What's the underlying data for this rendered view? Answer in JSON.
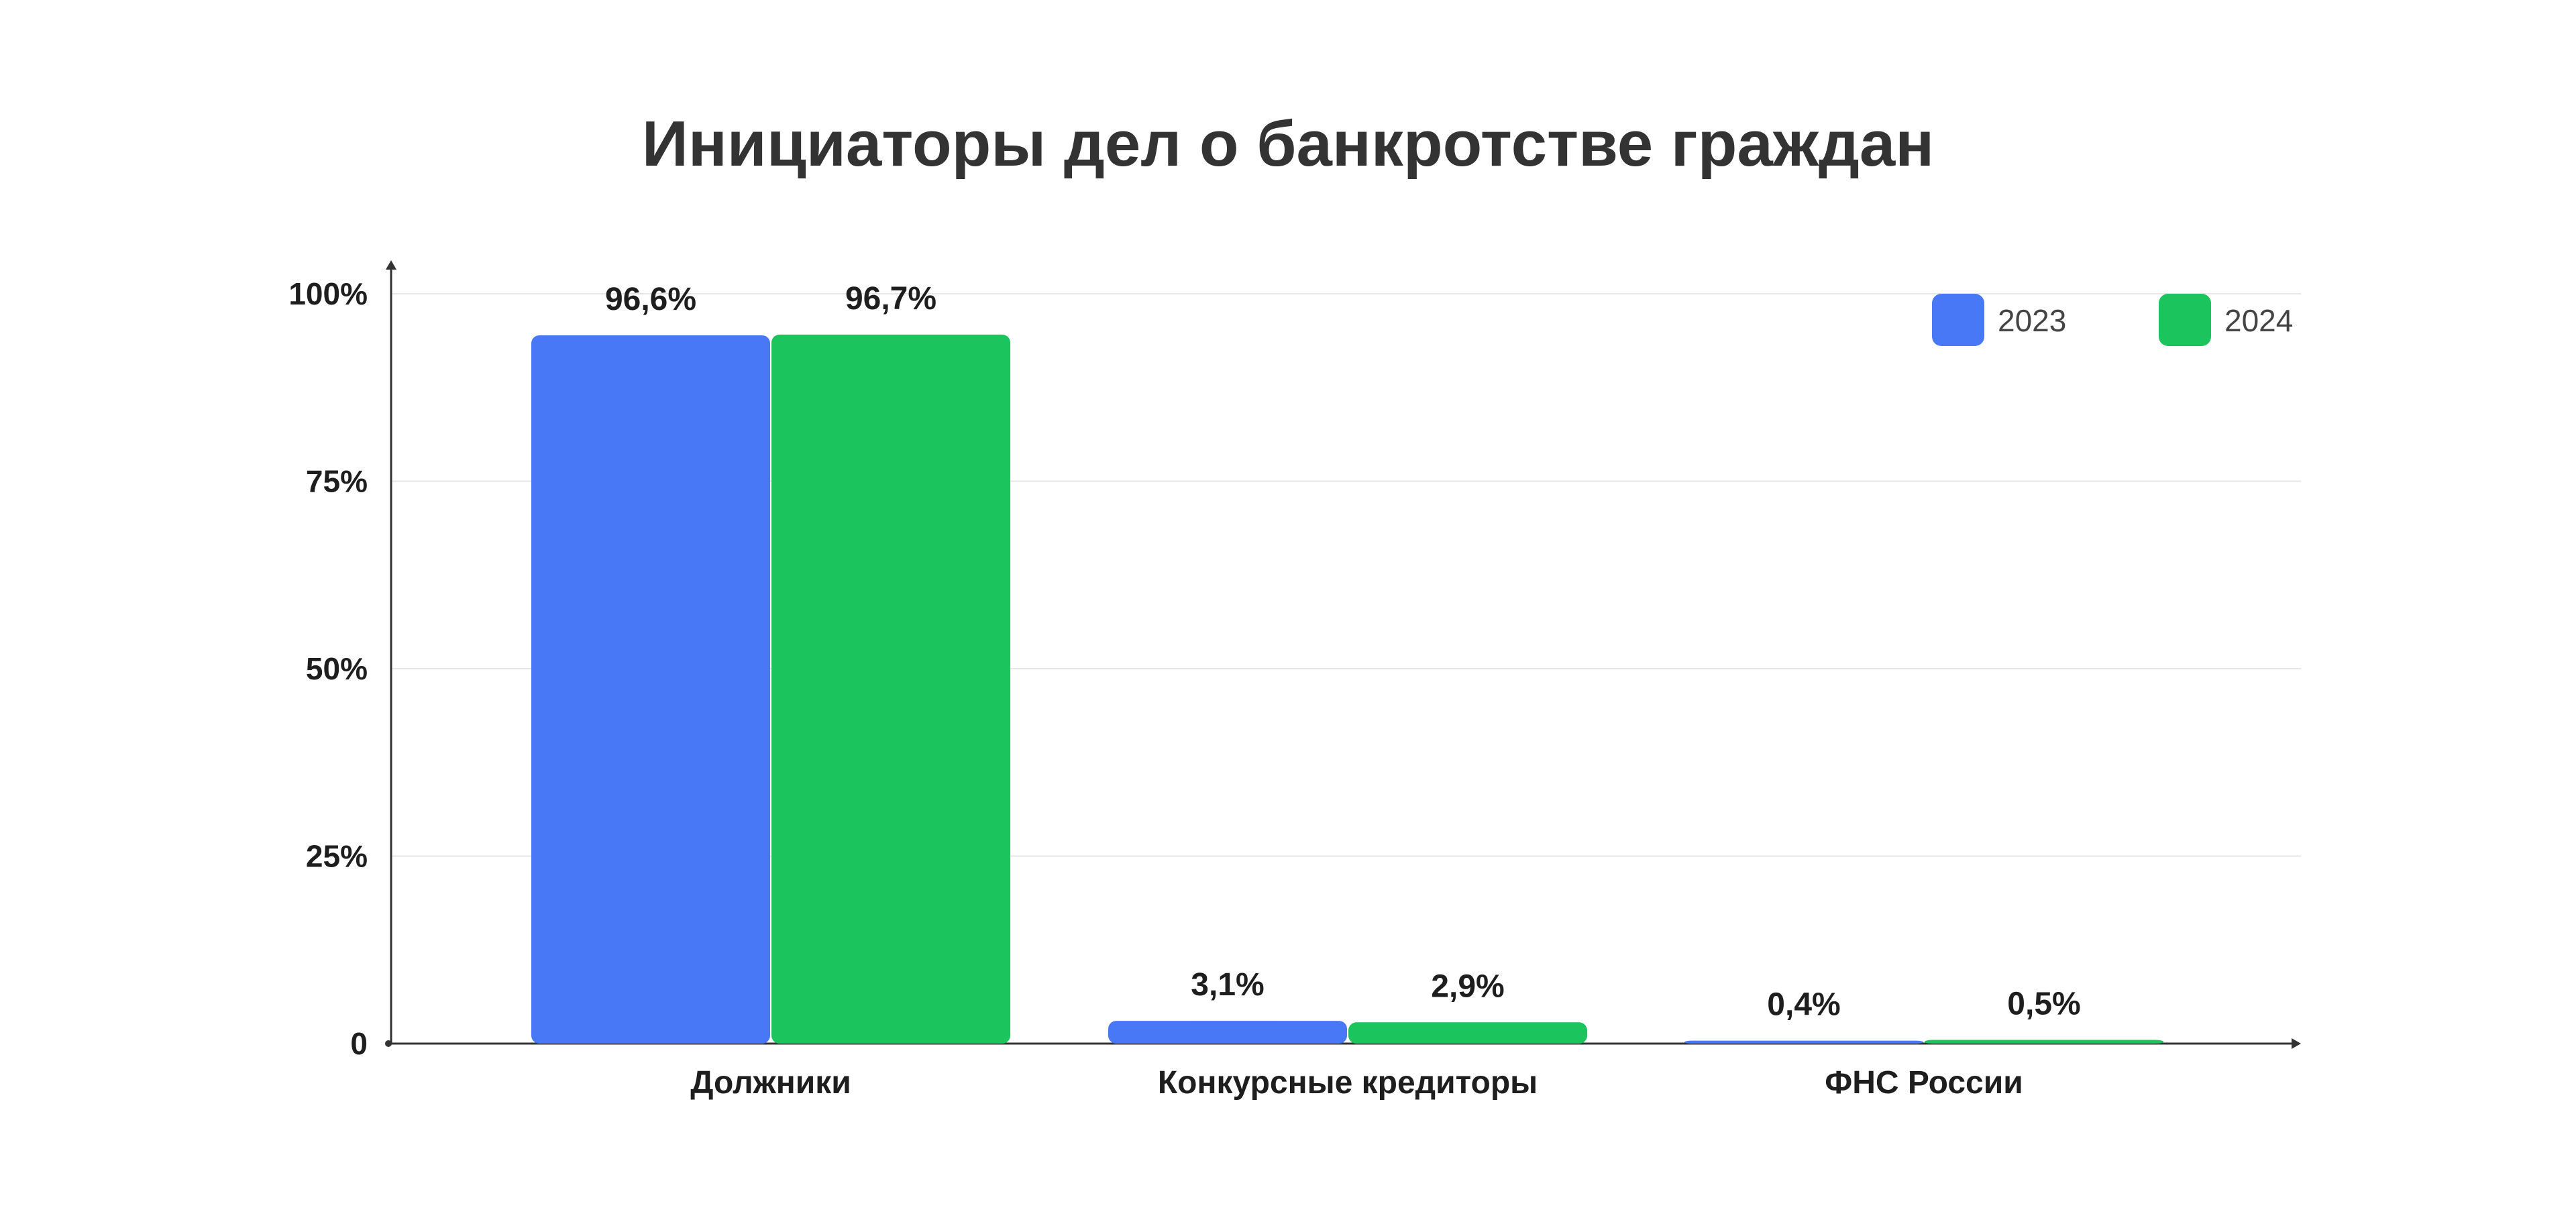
{
  "chart_data": {
    "type": "bar",
    "title": "Инициаторы дел о банкротстве граждан",
    "categories": [
      "Должники",
      "Конкурсные кредиторы",
      "ФНС России"
    ],
    "series": [
      {
        "name": "2023",
        "color": "#4878f5",
        "values": [
          96.6,
          3.1,
          0.4
        ],
        "labels": [
          "96,6%",
          "3,1%",
          "0,4%"
        ]
      },
      {
        "name": "2024",
        "color": "#1bc45d",
        "values": [
          96.7,
          2.9,
          0.5
        ],
        "labels": [
          "96,7%",
          "2,9%",
          "0,5%"
        ]
      }
    ],
    "yticks": [
      {
        "value": 0,
        "label": "0"
      },
      {
        "value": 25,
        "label": "25%"
      },
      {
        "value": 50,
        "label": "50%"
      },
      {
        "value": 75,
        "label": "75%"
      },
      {
        "value": 100,
        "label": "100%"
      }
    ],
    "ylim": [
      0,
      100
    ],
    "xlabel": "",
    "ylabel": "",
    "grid": true,
    "legend": "top-right"
  }
}
